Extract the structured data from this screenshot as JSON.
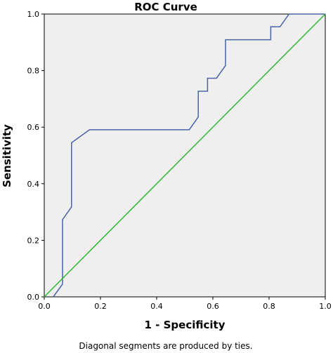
{
  "chart_data": {
    "type": "line",
    "title": "ROC Curve",
    "xlabel": "1 - Specificity",
    "ylabel": "Sensitivity",
    "xlim": [
      0.0,
      1.0
    ],
    "ylim": [
      0.0,
      1.0
    ],
    "x_ticks": [
      "0.0",
      "0.2",
      "0.4",
      "0.6",
      "0.8",
      "1.0"
    ],
    "y_ticks": [
      "0.0",
      "0.2",
      "0.4",
      "0.6",
      "0.8",
      "1.0"
    ],
    "grid": false,
    "colors": {
      "background": "#efefef",
      "roc": "#4a63a8",
      "reference": "#2fb82f"
    },
    "series": [
      {
        "values": [
          [
            0.032,
            0.0
          ],
          [
            0.065,
            0.045
          ],
          [
            0.065,
            0.273
          ],
          [
            0.097,
            0.318
          ],
          [
            0.097,
            0.545
          ],
          [
            0.161,
            0.591
          ],
          [
            0.516,
            0.591
          ],
          [
            0.548,
            0.636
          ],
          [
            0.548,
            0.727
          ],
          [
            0.581,
            0.727
          ],
          [
            0.581,
            0.773
          ],
          [
            0.613,
            0.773
          ],
          [
            0.645,
            0.818
          ],
          [
            0.645,
            0.909
          ],
          [
            0.806,
            0.909
          ],
          [
            0.806,
            0.955
          ],
          [
            0.839,
            0.955
          ],
          [
            0.871,
            1.0
          ],
          [
            1.0,
            1.0
          ]
        ]
      },
      {
        "values": [
          [
            0.0,
            0.0
          ],
          [
            1.0,
            1.0
          ]
        ]
      }
    ],
    "footnote": "Diagonal segments are produced by ties."
  }
}
